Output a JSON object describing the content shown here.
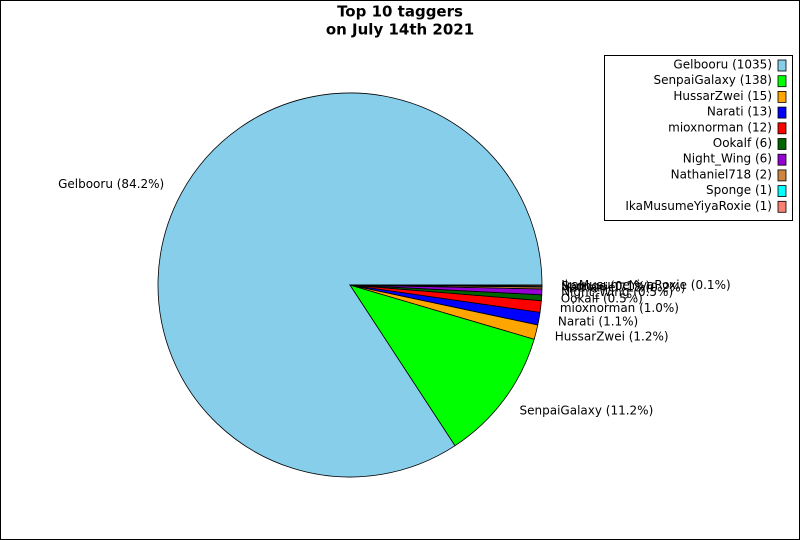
{
  "chart_data": {
    "type": "pie",
    "title": [
      "Top 10 taggers",
      "on July 14th 2021"
    ],
    "categories": [
      "Gelbooru",
      "SenpaiGalaxy",
      "HussarZwei",
      "Narati",
      "mioxnorman",
      "Ookalf",
      "Night_Wing",
      "Nathaniel718",
      "Sponge",
      "IkaMusumeYiyaRoxie"
    ],
    "values": [
      1035,
      138,
      15,
      13,
      12,
      6,
      6,
      2,
      1,
      1
    ],
    "legend_labels": [
      "Gelbooru (1035)",
      "SenpaiGalaxy (138)",
      "HussarZwei (15)",
      "Narati (13)",
      "mioxnorman (12)",
      "Ookalf (6)",
      "Night_Wing (6)",
      "Nathaniel718 (2)",
      "Sponge (1)",
      "IkaMusumeYiyaRoxie (1)"
    ],
    "value_labels": [
      "Gelbooru (84.2%)",
      "SenpaiGalaxy (11.2%)",
      "HussarZwei (1.2%)",
      "Narati (1.1%)",
      "mioxnorman (1.0%)",
      "Ookalf (0.5%)",
      "Night_Wing (0.5%)",
      "Nathaniel718 (0.2%)",
      "Sponge (0.1%)",
      "IkaMusumeYiyaRoxie (0.1%)"
    ],
    "colors": [
      "#87ceeb",
      "#00ff00",
      "#ffa500",
      "#0000ff",
      "#ff0000",
      "#006400",
      "#9400d3",
      "#cd853f",
      "#00ffff",
      "#fa8072"
    ],
    "legend": "upper right"
  }
}
